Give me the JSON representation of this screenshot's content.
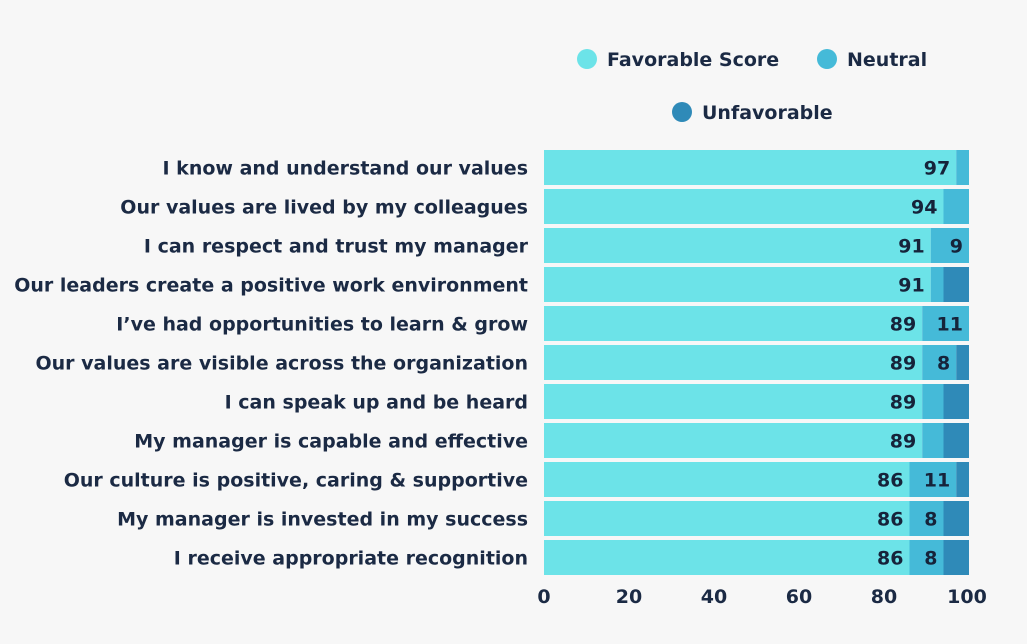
{
  "chart_data": {
    "type": "bar",
    "orientation": "horizontal",
    "stacked": true,
    "categories": [
      "I know and understand our values",
      "Our values are lived by my colleagues",
      "I can respect and trust my manager",
      "Our leaders create a positive work environment",
      "I’ve had opportunities to learn & grow",
      "Our values are visible across the organization",
      "I can speak up and be heard",
      "My manager is capable and effective",
      "Our culture is positive, caring & supportive",
      "My manager is invested in my success",
      "I receive appropriate recognition"
    ],
    "series": [
      {
        "name": "Favorable Score",
        "color": "#6ce3e8",
        "values": [
          97,
          94,
          91,
          91,
          89,
          89,
          89,
          89,
          86,
          86,
          86
        ],
        "labels": [
          "97",
          "94",
          "91",
          "91",
          "89",
          "89",
          "89",
          "89",
          "86",
          "86",
          "86"
        ]
      },
      {
        "name": "Neutral",
        "color": "#45bad8",
        "values": [
          3,
          6,
          9,
          3,
          11,
          8,
          5,
          5,
          11,
          8,
          8
        ],
        "labels": [
          "",
          "",
          "9",
          "",
          "11",
          "8",
          "",
          "",
          "11",
          "8",
          "8"
        ]
      },
      {
        "name": "Unfavorable",
        "color": "#2f8ab8",
        "values": [
          0,
          0,
          0,
          6,
          0,
          3,
          6,
          6,
          3,
          6,
          6
        ],
        "labels": [
          "",
          "",
          "",
          "",
          "",
          "",
          "",
          "",
          "",
          "",
          ""
        ]
      }
    ],
    "xlim": [
      0,
      100
    ],
    "xticks": [
      "0",
      "20",
      "40",
      "60",
      "80",
      "100"
    ],
    "legend_position": "top-right",
    "grid": false
  }
}
